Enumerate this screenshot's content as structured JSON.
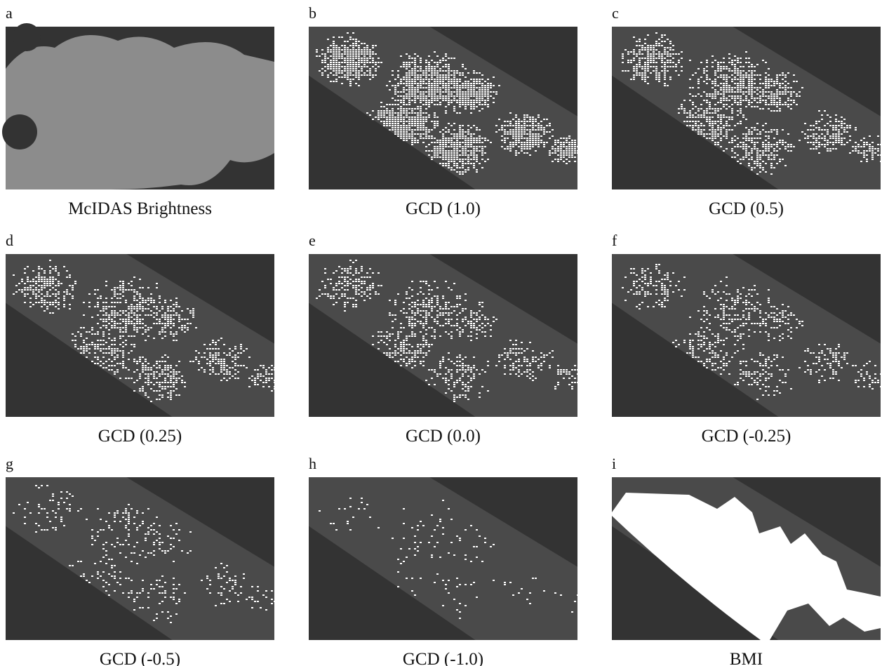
{
  "panels": [
    {
      "letter": "a",
      "caption": "McIDAS Brightness"
    },
    {
      "letter": "b",
      "caption": "GCD (1.0)"
    },
    {
      "letter": "c",
      "caption": "GCD (0.5)"
    },
    {
      "letter": "d",
      "caption": "GCD (0.25)"
    },
    {
      "letter": "e",
      "caption": "GCD (0.0)"
    },
    {
      "letter": "f",
      "caption": "GCD (-0.25)"
    },
    {
      "letter": "g",
      "caption": "GCD (-0.5)"
    },
    {
      "letter": "h",
      "caption": "GCD (-1.0)"
    },
    {
      "letter": "i",
      "caption": "BMI"
    }
  ]
}
